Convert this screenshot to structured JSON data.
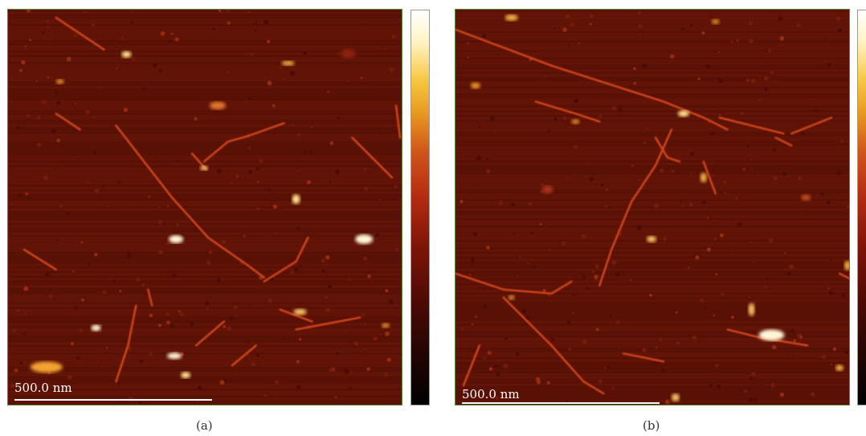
{
  "panels": [
    {
      "caption": "(a)",
      "scale_label": "500.0 nm"
    },
    {
      "caption": "(b)",
      "scale_label": "500.0 nm"
    }
  ],
  "colors": {
    "background": "#5c1206",
    "fiber": "#d4471c",
    "particle_bright": "#fff6d8",
    "panel_border": "#5a8a3c"
  }
}
